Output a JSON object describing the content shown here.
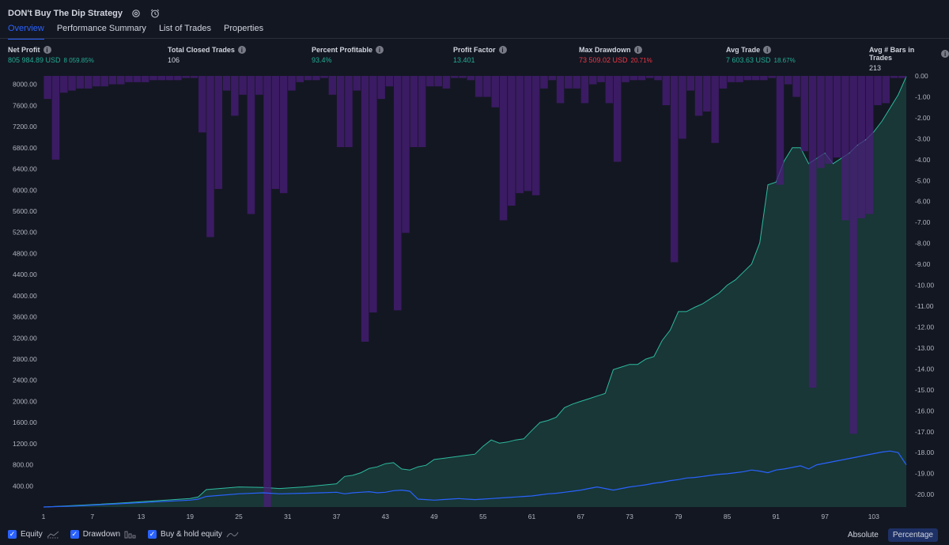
{
  "header": {
    "title": "DON't Buy The Dip Strategy"
  },
  "tabs": [
    "Overview",
    "Performance Summary",
    "List of Trades",
    "Properties"
  ],
  "metrics": [
    {
      "label": "Net Profit",
      "value": "805 984.89 USD",
      "sub": "8 059.85%",
      "color": "green",
      "subcolor": "green"
    },
    {
      "label": "Total Closed Trades",
      "value": "106",
      "sub": "",
      "color": "white",
      "subcolor": "white"
    },
    {
      "label": "Percent Profitable",
      "value": "93.4%",
      "sub": "",
      "color": "green",
      "subcolor": "green"
    },
    {
      "label": "Profit Factor",
      "value": "13.401",
      "sub": "",
      "color": "green",
      "subcolor": "green"
    },
    {
      "label": "Max Drawdown",
      "value": "73 509.02 USD",
      "sub": "20.71%",
      "color": "red",
      "subcolor": "red"
    },
    {
      "label": "Avg Trade",
      "value": "7 603.63 USD",
      "sub": "18.67%",
      "color": "green",
      "subcolor": "green"
    },
    {
      "label": "Avg # Bars in Trades",
      "value": "213",
      "sub": "",
      "color": "white",
      "subcolor": "white"
    }
  ],
  "legend": {
    "equity": "Equity",
    "drawdown": "Drawdown",
    "buyhold": "Buy & hold equity"
  },
  "modes": [
    "Absolute",
    "Percentage"
  ],
  "active_mode": "Percentage",
  "colors": {
    "equity": "#2dba9f",
    "equity_fill": "#1a3d3a",
    "buyhold": "#2962ff",
    "drawdown": "#4a1e7a",
    "accent": "#2962ff"
  },
  "chart_data": {
    "type": "area",
    "left_axis_ticks": [
      "8000.00",
      "7600.00",
      "7200.00",
      "6800.00",
      "6400.00",
      "6000.00",
      "5600.00",
      "5200.00",
      "4800.00",
      "4400.00",
      "4000.00",
      "3600.00",
      "3200.00",
      "2800.00",
      "2400.00",
      "2000.00",
      "1600.00",
      "1200.00",
      "800.00",
      "400.00"
    ],
    "right_axis_ticks": [
      "0.00",
      "-1.00",
      "-2.00",
      "-3.00",
      "-4.00",
      "-5.00",
      "-6.00",
      "-7.00",
      "-8.00",
      "-9.00",
      "-10.00",
      "-11.00",
      "-12.00",
      "-13.00",
      "-14.00",
      "-15.00",
      "-16.00",
      "-17.00",
      "-18.00",
      "-19.00",
      "-20.00"
    ],
    "x_ticks": [
      "1",
      "7",
      "13",
      "19",
      "25",
      "31",
      "37",
      "43",
      "49",
      "55",
      "61",
      "67",
      "73",
      "79",
      "85",
      "91",
      "97",
      "103"
    ],
    "xlim": [
      1,
      107
    ],
    "ylim_left": [
      0,
      8160
    ],
    "ylim_right": [
      -20.6,
      0
    ],
    "series": [
      {
        "name": "Equity",
        "x": [
          1,
          5,
          10,
          15,
          19,
          20,
          21,
          25,
          28,
          30,
          33,
          35,
          37,
          38,
          39,
          40,
          41,
          42,
          43,
          44,
          45,
          46,
          47,
          48,
          49,
          50,
          51,
          52,
          53,
          54,
          55,
          56,
          57,
          58,
          59,
          60,
          61,
          62,
          63,
          64,
          65,
          66,
          67,
          68,
          69,
          70,
          71,
          72,
          73,
          74,
          75,
          76,
          77,
          78,
          79,
          80,
          81,
          82,
          83,
          84,
          85,
          86,
          87,
          88,
          89,
          90,
          91,
          92,
          93,
          94,
          95,
          96,
          97,
          98,
          99,
          100,
          101,
          102,
          103,
          104,
          105,
          106,
          107
        ],
        "values": [
          0,
          30,
          70,
          120,
          160,
          190,
          330,
          380,
          370,
          350,
          380,
          410,
          440,
          580,
          600,
          650,
          730,
          760,
          820,
          840,
          720,
          700,
          760,
          790,
          900,
          920,
          940,
          960,
          980,
          1000,
          1150,
          1270,
          1210,
          1230,
          1270,
          1290,
          1450,
          1600,
          1640,
          1700,
          1880,
          1950,
          2000,
          2050,
          2100,
          2150,
          2600,
          2650,
          2700,
          2700,
          2800,
          2850,
          3150,
          3350,
          3700,
          3700,
          3780,
          3850,
          3950,
          4050,
          4200,
          4300,
          4450,
          4600,
          5000,
          6100,
          6150,
          6550,
          6800,
          6800,
          6500,
          6600,
          6700,
          6500,
          6600,
          6700,
          6850,
          6950,
          7100,
          7300,
          7550,
          7800,
          8150
        ]
      },
      {
        "name": "Buy & hold equity",
        "x": [
          1,
          5,
          10,
          15,
          19,
          20,
          21,
          25,
          28,
          30,
          33,
          35,
          37,
          38,
          39,
          40,
          41,
          42,
          43,
          44,
          45,
          46,
          47,
          48,
          49,
          50,
          51,
          52,
          53,
          54,
          55,
          56,
          57,
          58,
          59,
          60,
          61,
          62,
          63,
          64,
          65,
          66,
          67,
          68,
          69,
          70,
          71,
          72,
          73,
          74,
          75,
          76,
          77,
          78,
          79,
          80,
          81,
          82,
          83,
          84,
          85,
          86,
          87,
          88,
          89,
          90,
          91,
          92,
          93,
          94,
          95,
          96,
          97,
          98,
          99,
          100,
          101,
          102,
          103,
          104,
          105,
          106,
          107
        ],
        "values": [
          0,
          20,
          60,
          100,
          130,
          150,
          200,
          250,
          270,
          250,
          260,
          270,
          280,
          250,
          270,
          280,
          290,
          270,
          280,
          310,
          320,
          300,
          150,
          140,
          130,
          140,
          150,
          160,
          150,
          140,
          150,
          160,
          170,
          180,
          190,
          200,
          210,
          230,
          250,
          260,
          280,
          300,
          320,
          350,
          380,
          350,
          320,
          350,
          380,
          400,
          420,
          450,
          470,
          500,
          520,
          550,
          560,
          580,
          600,
          620,
          630,
          650,
          670,
          700,
          680,
          650,
          700,
          720,
          750,
          780,
          720,
          800,
          830,
          860,
          890,
          920,
          950,
          980,
          1010,
          1040,
          1060,
          1030,
          800
        ]
      },
      {
        "name": "Drawdown",
        "x": [
          1,
          2,
          3,
          4,
          5,
          6,
          7,
          8,
          9,
          10,
          11,
          12,
          13,
          14,
          15,
          16,
          17,
          18,
          19,
          20,
          21,
          22,
          23,
          24,
          25,
          26,
          27,
          28,
          29,
          30,
          31,
          32,
          33,
          34,
          35,
          36,
          37,
          38,
          39,
          40,
          41,
          42,
          43,
          44,
          45,
          46,
          47,
          48,
          49,
          50,
          51,
          52,
          53,
          54,
          55,
          56,
          57,
          58,
          59,
          60,
          61,
          62,
          63,
          64,
          65,
          66,
          67,
          68,
          69,
          70,
          71,
          72,
          73,
          74,
          75,
          76,
          77,
          78,
          79,
          80,
          81,
          82,
          83,
          84,
          85,
          86,
          87,
          88,
          89,
          90,
          91,
          92,
          93,
          94,
          95,
          96,
          97,
          98,
          99,
          100,
          101,
          102,
          103,
          104,
          105,
          106
        ],
        "values": [
          -1.1,
          -4.0,
          -0.8,
          -0.7,
          -0.6,
          -0.6,
          -0.5,
          -0.5,
          -0.4,
          -0.4,
          -0.3,
          -0.3,
          -0.3,
          -0.2,
          -0.2,
          -0.2,
          -0.2,
          -0.1,
          -0.1,
          -2.7,
          -7.7,
          -5.4,
          -0.7,
          -1.9,
          -0.9,
          -6.6,
          -0.9,
          -20.6,
          -5.4,
          -5.6,
          -0.7,
          -0.3,
          -0.2,
          -0.2,
          -0.1,
          -0.9,
          -3.4,
          -3.4,
          -0.7,
          -12.7,
          -11.3,
          -1.1,
          -0.5,
          -11.2,
          -7.5,
          -3.4,
          -3.4,
          -0.5,
          -0.5,
          -0.6,
          -0.1,
          -0.1,
          -0.2,
          -1.0,
          -1.0,
          -1.5,
          -6.9,
          -6.2,
          -5.6,
          -5.5,
          -5.7,
          -0.6,
          -0.2,
          -1.3,
          -0.6,
          -0.6,
          -1.3,
          -0.4,
          -0.3,
          -1.3,
          -4.1,
          -0.3,
          -0.2,
          -0.2,
          -0.1,
          -0.2,
          -1.4,
          -8.9,
          -3.0,
          -0.7,
          -1.9,
          -1.7,
          -3.2,
          -0.6,
          -0.3,
          -0.3,
          -0.2,
          -0.2,
          -0.2,
          -0.1,
          -5.2,
          -0.4,
          -1.0,
          -3.6,
          -14.9,
          -4.4,
          -4.2,
          -3.9,
          -6.9,
          -17.1,
          -6.8,
          -6.6,
          -1.4,
          -1.3,
          -0.1,
          -0.1
        ]
      }
    ]
  }
}
